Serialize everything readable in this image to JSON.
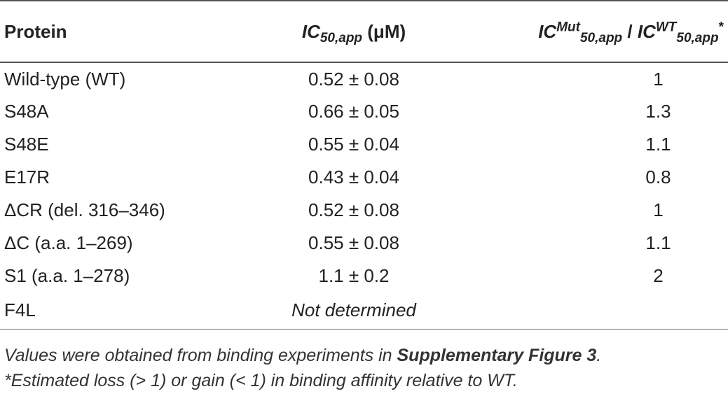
{
  "table": {
    "headers": {
      "protein": "Protein",
      "ic_main": "IC",
      "ic_sub": "50,app",
      "ic_unit": " (μM)",
      "ratio_main1": "IC",
      "ratio_sup1": "Mut",
      "ratio_sub1": "50,app",
      "ratio_sep": " / ",
      "ratio_main2": "IC",
      "ratio_sup2": "WT",
      "ratio_sub2": "50,app",
      "ratio_star": "*"
    },
    "rows": [
      {
        "protein": "Wild-type (WT)",
        "ic50": "0.52 ± 0.08",
        "ratio": "1"
      },
      {
        "protein": "S48A",
        "ic50": "0.66 ± 0.05",
        "ratio": "1.3"
      },
      {
        "protein": "S48E",
        "ic50": "0.55 ± 0.04",
        "ratio": "1.1"
      },
      {
        "protein": "E17R",
        "ic50": "0.43 ± 0.04",
        "ratio": "0.8"
      },
      {
        "protein": "ΔCR (del. 316–346)",
        "ic50": "0.52 ± 0.08",
        "ratio": "1"
      },
      {
        "protein": "ΔC (a.a. 1–269)",
        "ic50": "0.55 ± 0.08",
        "ratio": "1.1"
      },
      {
        "protein": "S1 (a.a. 1–278)",
        "ic50": "1.1 ± 0.2",
        "ratio": "2"
      },
      {
        "protein": "F4L",
        "ic50": "Not determined",
        "ratio": ""
      }
    ]
  },
  "footnotes": {
    "line1_pre": "Values were obtained from binding experiments in ",
    "line1_bold": "Supplementary Figure 3",
    "line1_post": ".",
    "line2": "*Estimated loss (> 1) or gain (< 1) in binding affinity relative to WT."
  }
}
